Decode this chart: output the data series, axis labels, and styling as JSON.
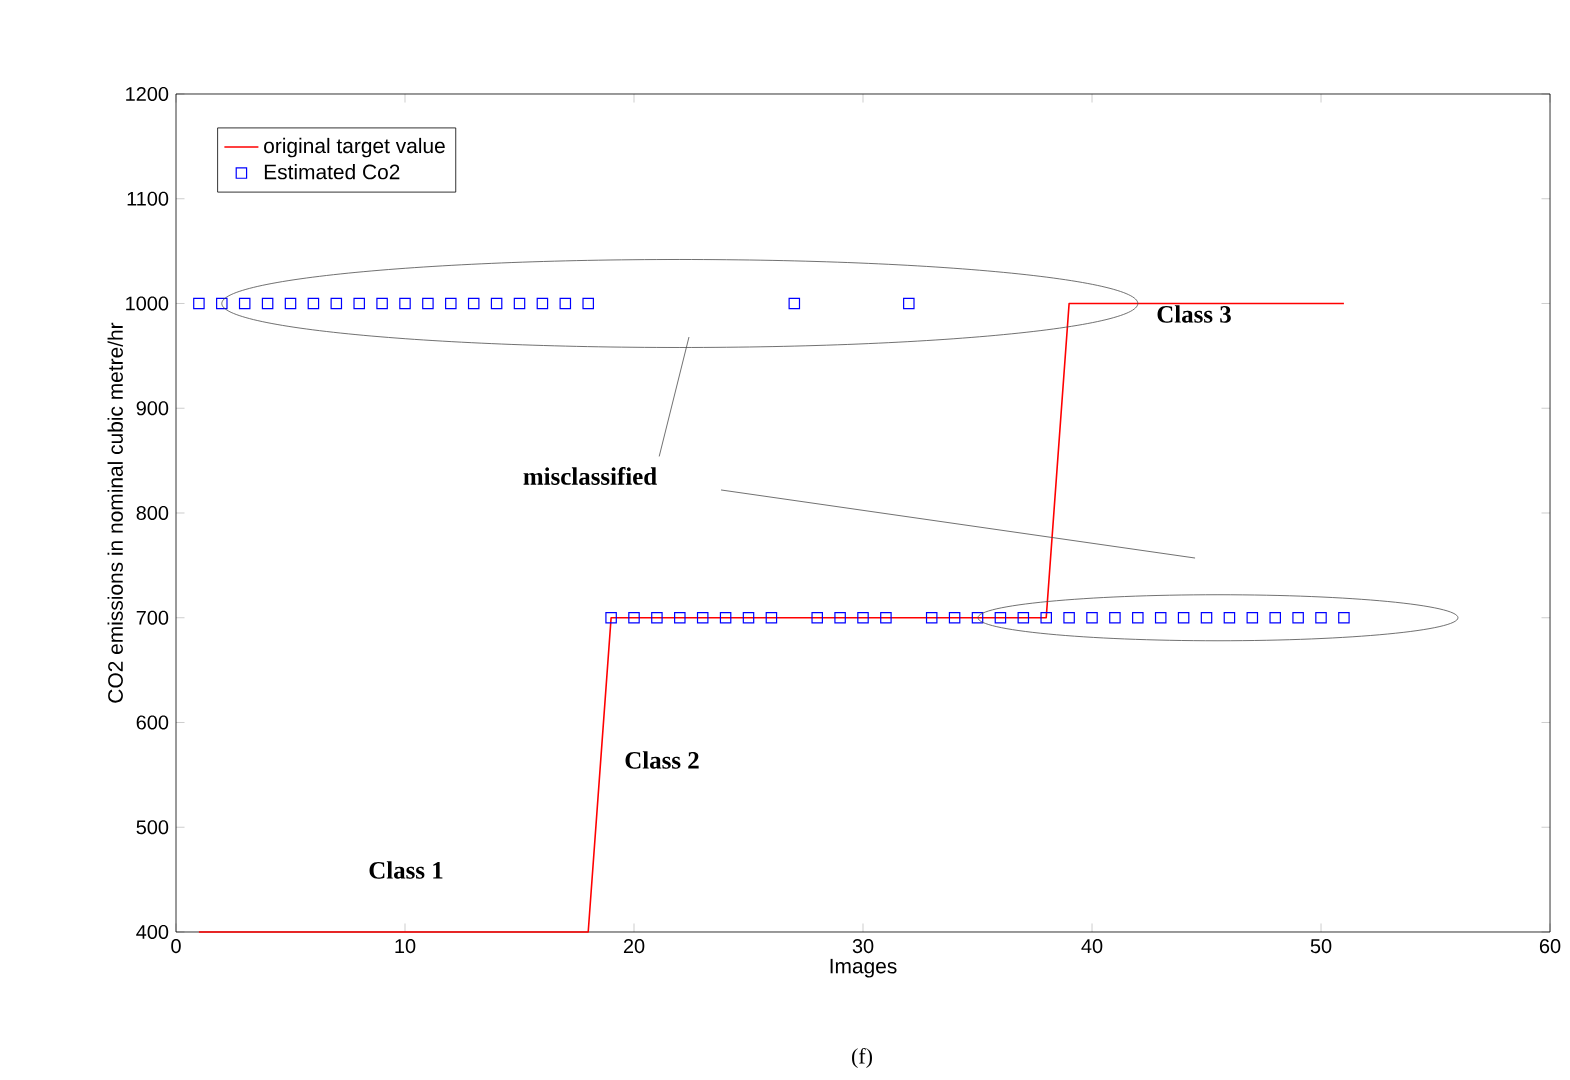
{
  "chart_data": {
    "type": "scatter",
    "xlabel": "Images",
    "ylabel": "CO2 emissions in nominal cubic metre/hr",
    "xlim": [
      0,
      60
    ],
    "ylim": [
      400,
      1200
    ],
    "xticks": [
      0,
      10,
      20,
      30,
      40,
      50,
      60
    ],
    "yticks": [
      400,
      500,
      600,
      700,
      800,
      900,
      1000,
      1100,
      1200
    ],
    "grid": false,
    "legend": "top left",
    "series": [
      {
        "name": "original target value",
        "type": "line",
        "color": "#ff0000",
        "marker": "none",
        "x": [
          1,
          18,
          19,
          38,
          39,
          51
        ],
        "values": [
          400,
          400,
          700,
          700,
          1000,
          1000
        ]
      },
      {
        "name": "Estimated Co2",
        "color": "#0000ff",
        "marker": "square",
        "x": [
          1,
          2,
          3,
          4,
          5,
          6,
          7,
          8,
          9,
          10,
          11,
          12,
          13,
          14,
          15,
          16,
          17,
          18,
          19,
          20,
          21,
          22,
          23,
          24,
          25,
          26,
          27,
          28,
          29,
          30,
          31,
          32,
          33,
          34,
          35,
          36,
          37,
          38,
          39,
          40,
          41,
          42,
          43,
          44,
          45,
          46,
          47,
          48,
          49,
          50,
          51
        ],
        "values": [
          1000,
          1000,
          1000,
          1000,
          1000,
          1000,
          1000,
          1000,
          1000,
          1000,
          1000,
          1000,
          1000,
          1000,
          1000,
          1000,
          1000,
          1000,
          700,
          700,
          700,
          700,
          700,
          700,
          700,
          700,
          1000,
          700,
          700,
          700,
          700,
          1000,
          700,
          700,
          700,
          700,
          700,
          700,
          700,
          700,
          700,
          700,
          700,
          700,
          700,
          700,
          700,
          700,
          700,
          700,
          700
        ]
      }
    ],
    "annotations": [
      "Class 1",
      "Class 2",
      "Class 3",
      "misclassified",
      "(f)"
    ]
  }
}
